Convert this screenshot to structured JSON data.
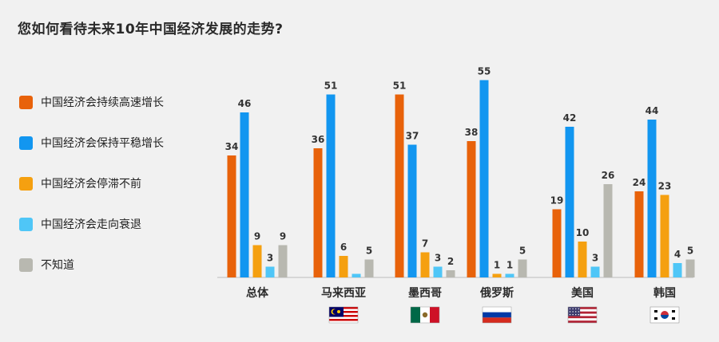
{
  "title": "您如何看待未来10年中国经济发展的走势?",
  "chart_data": {
    "type": "bar",
    "title": "您如何看待未来10年中国经济发展的走势?",
    "categories": [
      "总体",
      "马来西亚",
      "墨西哥",
      "俄罗斯",
      "美国",
      "韩国"
    ],
    "flags": [
      null,
      "malaysia-flag",
      "mexico-flag",
      "russia-flag",
      "usa-flag",
      "south-korea-flag"
    ],
    "series": [
      {
        "name": "中国经济会持续高速增长",
        "color": "#e8620a",
        "values": [
          34,
          36,
          51,
          38,
          19,
          24
        ]
      },
      {
        "name": "中国经济会保持平稳增长",
        "color": "#1296f0",
        "values": [
          46,
          51,
          37,
          55,
          42,
          44
        ]
      },
      {
        "name": "中国经济会停滞不前",
        "color": "#f5a010",
        "values": [
          9,
          6,
          7,
          1,
          10,
          23
        ]
      },
      {
        "name": "中国经济会走向衰退",
        "color": "#4fc6f7",
        "values": [
          3,
          1,
          3,
          1,
          3,
          4
        ]
      },
      {
        "name": "不知道",
        "color": "#b8b8b0",
        "values": [
          9,
          5,
          2,
          5,
          26,
          5
        ]
      }
    ],
    "value_labels": [
      [
        "34",
        "46",
        "9",
        "3",
        "9"
      ],
      [
        "36",
        "51",
        "6",
        "",
        "5"
      ],
      [
        "51",
        "37",
        "7",
        "3",
        "2"
      ],
      [
        "38",
        "55",
        "1",
        "1",
        "5"
      ],
      [
        "19",
        "42",
        "10",
        "3",
        "26"
      ],
      [
        "24",
        "44",
        "23",
        "4",
        "5"
      ]
    ],
    "ylim": [
      0,
      60
    ],
    "grid": false,
    "legend_position": "left"
  }
}
